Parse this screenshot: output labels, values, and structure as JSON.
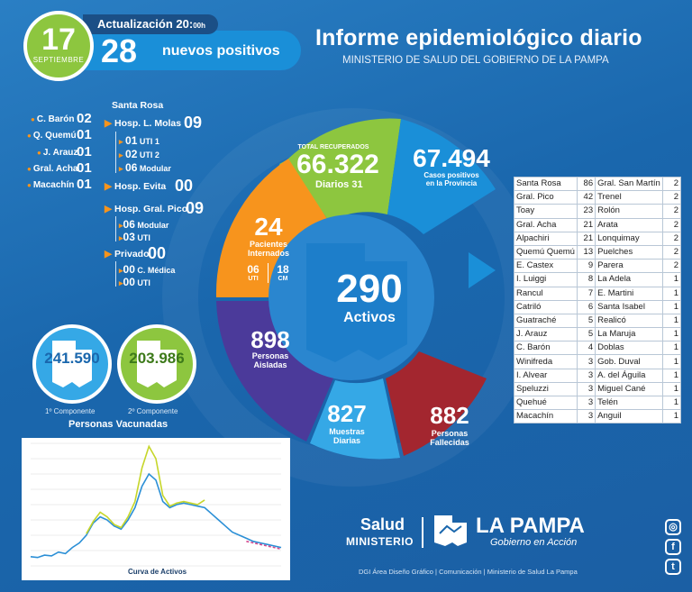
{
  "header": {
    "day": "17",
    "month": "SEPTIEMBRE",
    "update_label": "Actualización 20:",
    "update_time": "00h",
    "new_positives": "28",
    "new_positives_label": "nuevos positivos",
    "title": "Informe epidemiológico diario",
    "subtitle": "MINISTERIO DE SALUD DEL GOBIERNO DE LA PAMPA"
  },
  "localities": [
    {
      "name": "C. Barón",
      "value": "02"
    },
    {
      "name": "Q. Quemú",
      "value": "01"
    },
    {
      "name": "J. Arauz",
      "value": "01"
    },
    {
      "name": "Gral. Acha",
      "value": "01"
    },
    {
      "name": "Macachín",
      "value": "01"
    }
  ],
  "hospitals": {
    "region": "Santa Rosa",
    "molas": {
      "name": "Hosp. L. Molas",
      "value": "09",
      "subs": [
        {
          "v": "01",
          "l": "UTI 1"
        },
        {
          "v": "02",
          "l": "UTI 2"
        },
        {
          "v": "06",
          "l": "Modular"
        }
      ]
    },
    "evita": {
      "name": "Hosp. Evita",
      "value": "00"
    },
    "pico": {
      "name": "Hosp. Gral. Pico",
      "value": "09",
      "subs": [
        {
          "v": "06",
          "l": "Modular"
        },
        {
          "v": "03",
          "l": "UTI"
        }
      ]
    },
    "privado": {
      "name": "Privado",
      "value": "00",
      "subs": [
        {
          "v": "00",
          "l": "C. Médica"
        },
        {
          "v": "00",
          "l": "UTI"
        }
      ]
    }
  },
  "vaccines": {
    "first": {
      "value": "241.590",
      "label": "1º Componente"
    },
    "second": {
      "value": "203.986",
      "label": "2º Componente"
    },
    "title": "Personas Vacunadas"
  },
  "wheel": {
    "recovered_label": "TOTAL RECUPERADOS",
    "recovered": "66.322",
    "daily_label": "Diarios",
    "daily": "31",
    "positive_cases": "67.494",
    "positive_label_1": "Casos positivos",
    "positive_label_2": "en la Provincia",
    "hospitalized": "24",
    "hosp_label_1": "Pacientes",
    "hosp_label_2": "Internados",
    "uti": "06",
    "uti_label": "UTI",
    "cm": "18",
    "cm_label": "CM",
    "active": "290",
    "active_label": "Activos",
    "isolated": "898",
    "isolated_label_1": "Personas",
    "isolated_label_2": "Aisladas",
    "samples": "827",
    "samples_label_1": "Muestras",
    "samples_label_2": "Diarias",
    "deceased": "882",
    "deceased_label_1": "Personas",
    "deceased_label_2": "Fallecidas"
  },
  "table": [
    [
      "Santa Rosa",
      "86",
      "Gral. San Martín",
      "2"
    ],
    [
      "Gral. Pico",
      "42",
      "Trenel",
      "2"
    ],
    [
      "Toay",
      "23",
      "Rolón",
      "2"
    ],
    [
      "Gral. Acha",
      "21",
      "Arata",
      "2"
    ],
    [
      "Alpachiri",
      "21",
      "Lonquimay",
      "2"
    ],
    [
      "Quemú Quemú",
      "13",
      "Puelches",
      "2"
    ],
    [
      "E. Castex",
      "9",
      "Parera",
      "2"
    ],
    [
      "I. Luiggi",
      "8",
      "La Adela",
      "1"
    ],
    [
      "Rancul",
      "7",
      "E. Martini",
      "1"
    ],
    [
      "Catriló",
      "6",
      "Santa Isabel",
      "1"
    ],
    [
      "Guatraché",
      "5",
      "Realicó",
      "1"
    ],
    [
      "J. Arauz",
      "5",
      "La Maruja",
      "1"
    ],
    [
      "C. Barón",
      "4",
      "Doblas",
      "1"
    ],
    [
      "Winifreda",
      "3",
      "Gob. Duval",
      "1"
    ],
    [
      "I. Alvear",
      "3",
      "A. del Águila",
      "1"
    ],
    [
      "Speluzzi",
      "3",
      "Miguel Cané",
      "1"
    ],
    [
      "Quehué",
      "3",
      "Telén",
      "1"
    ],
    [
      "Macachín",
      "3",
      "Anguil",
      "1"
    ]
  ],
  "chart_data": {
    "type": "line",
    "title": "Curva de Activos",
    "series": [
      {
        "color": "#2b8fd6",
        "values": [
          60,
          55,
          70,
          65,
          90,
          80,
          120,
          150,
          200,
          280,
          320,
          300,
          260,
          240,
          300,
          380,
          520,
          600,
          560,
          420,
          380,
          400,
          410,
          400,
          390,
          380,
          340,
          300,
          260,
          220,
          200,
          180,
          160,
          150,
          140,
          130,
          120
        ]
      },
      {
        "color": "#c6d62a",
        "values": [
          null,
          null,
          null,
          null,
          null,
          null,
          null,
          null,
          210,
          290,
          350,
          320,
          270,
          250,
          320,
          420,
          640,
          780,
          700,
          460,
          390,
          410,
          420,
          410,
          400,
          430,
          null,
          null,
          null,
          null,
          null,
          null,
          null,
          null,
          null,
          null,
          null
        ]
      },
      {
        "color": "#d44a8f",
        "values": [
          null,
          null,
          null,
          null,
          null,
          null,
          null,
          null,
          null,
          null,
          null,
          null,
          null,
          null,
          null,
          null,
          null,
          null,
          null,
          null,
          null,
          null,
          null,
          null,
          null,
          null,
          null,
          null,
          null,
          null,
          null,
          160,
          150,
          140,
          130,
          120,
          110
        ]
      }
    ],
    "ylim": [
      0,
      800
    ]
  },
  "branding": {
    "salud": "Salud",
    "ministerio": "MINISTERIO",
    "lapampa": "LA PAMPA",
    "gobierno": "Gobierno en Acción",
    "footer": "DGI Área Diseño Gráfico  |  Comunicación  |  Ministerio de Salud La Pampa"
  },
  "social": [
    "instagram-icon",
    "facebook-icon",
    "twitter-icon"
  ],
  "colors": {
    "green": "#8dc63f",
    "orange": "#f7941d",
    "blue": "#1a8fd8",
    "purple": "#4b3a9a",
    "lightblue": "#35a8e6",
    "red": "#a3262f"
  }
}
